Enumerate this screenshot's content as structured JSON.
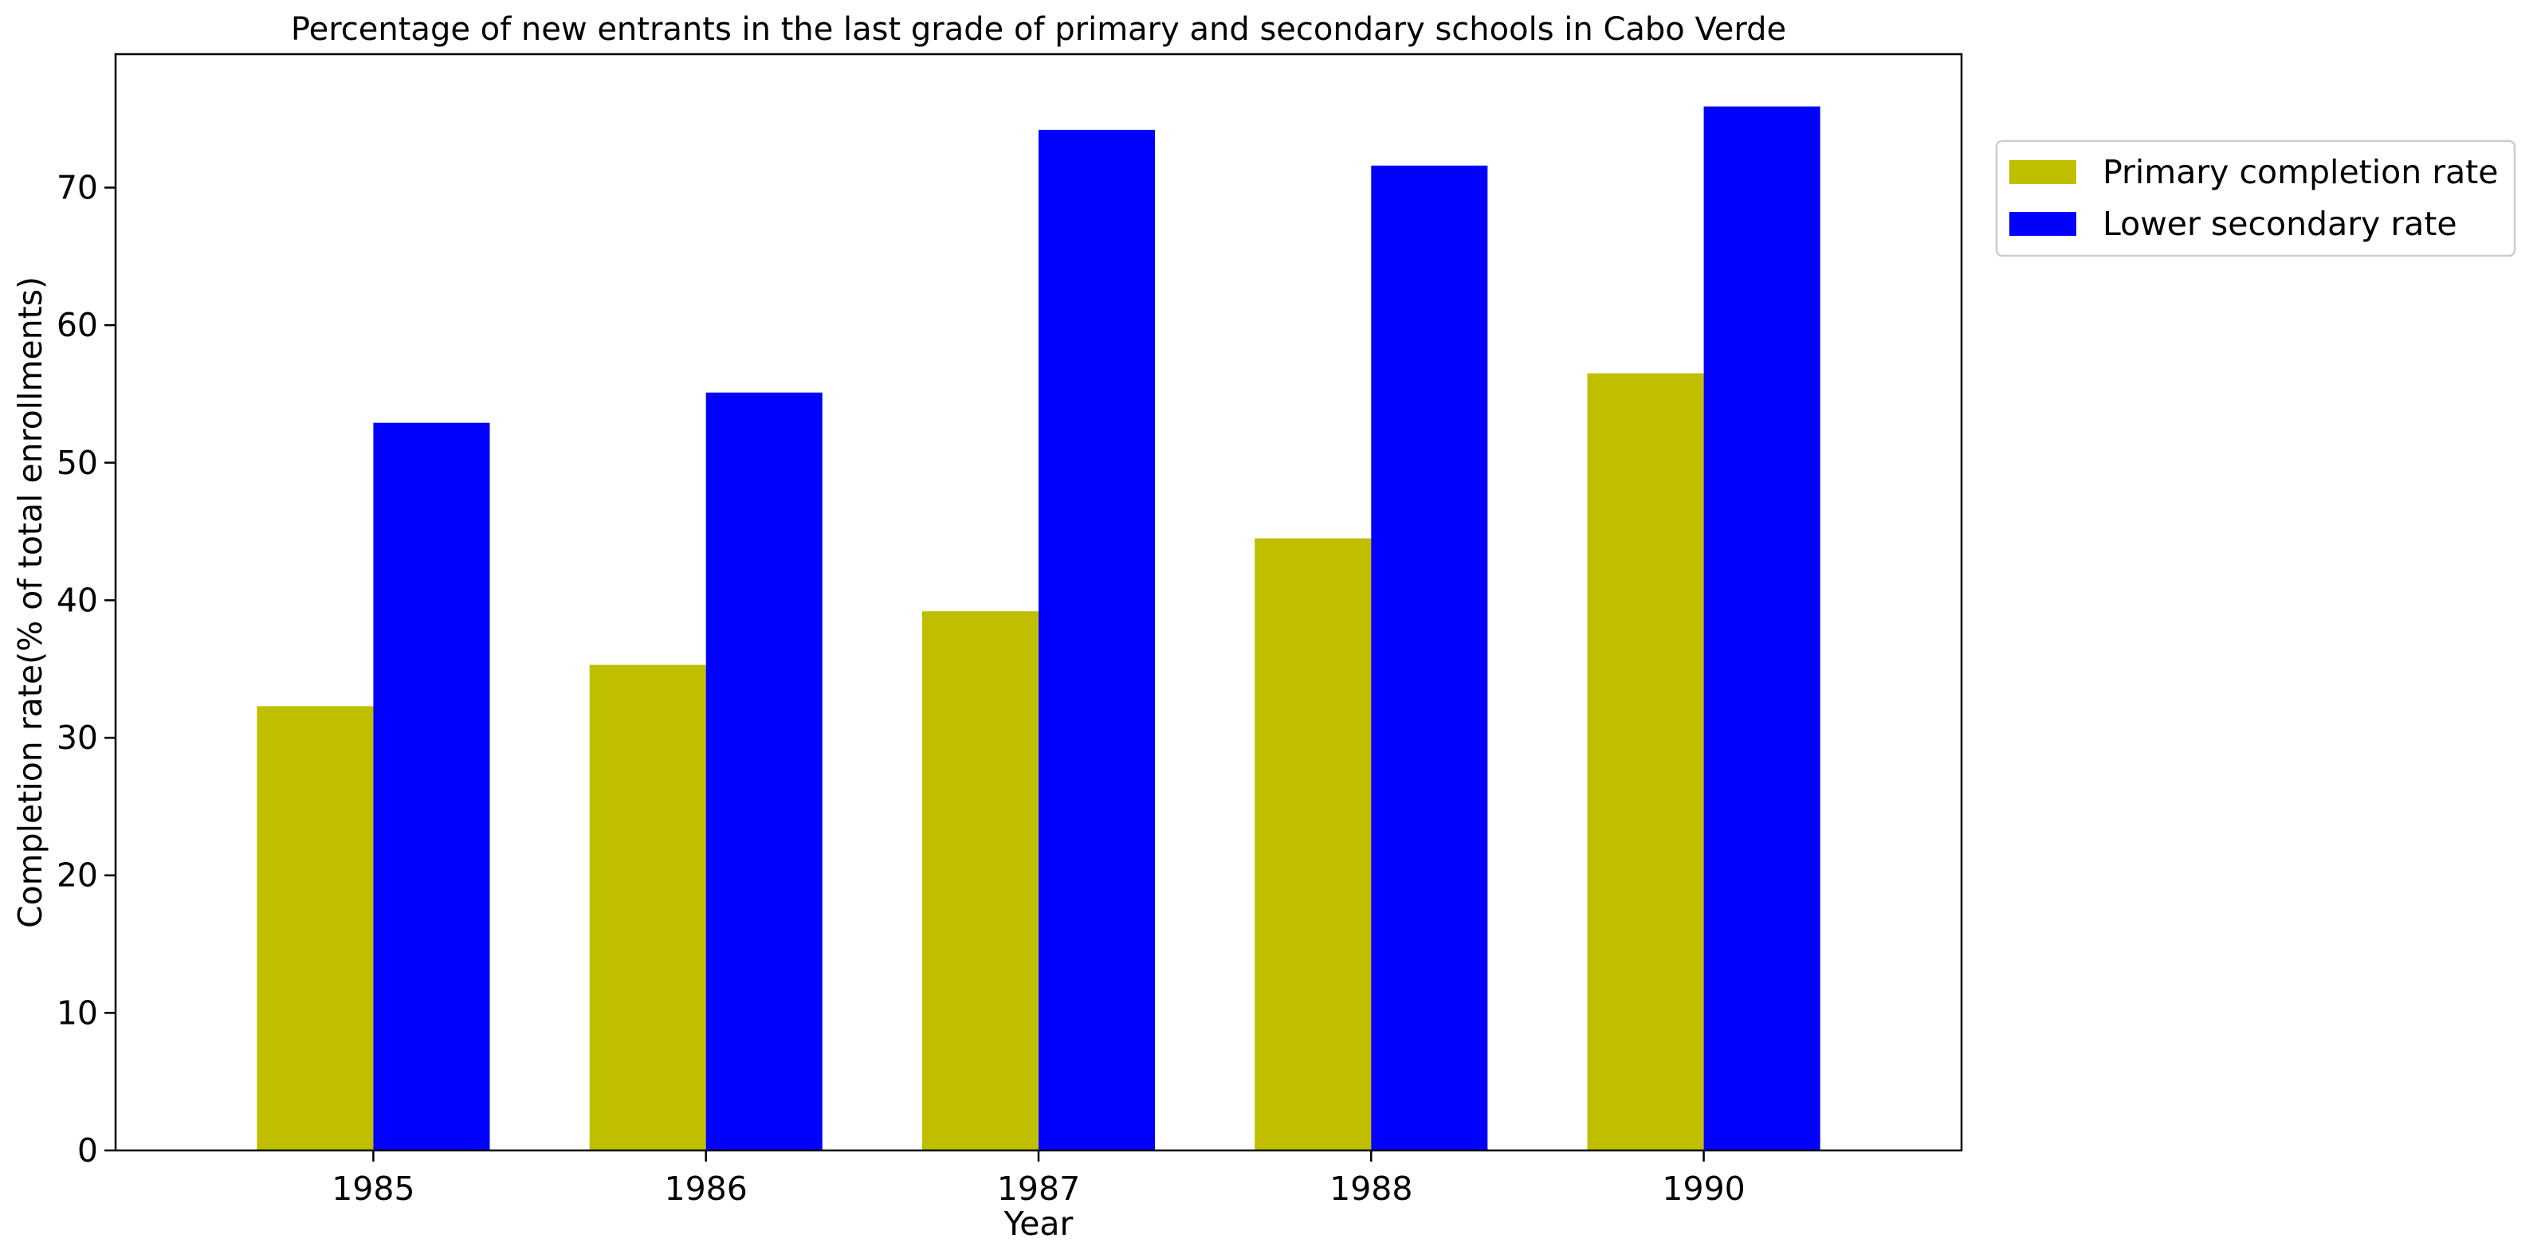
{
  "chart_data": {
    "type": "bar",
    "title": "Percentage of new entrants in the last grade of primary  and secondary schools in Cabo Verde",
    "xlabel": "Year",
    "ylabel": "Completion rate(% of total enrollments)",
    "categories": [
      "1985",
      "1986",
      "1987",
      "1988",
      "1990"
    ],
    "series": [
      {
        "name": "Primary completion rate",
        "values": [
          32.3,
          35.3,
          39.2,
          44.5,
          56.5
        ],
        "color": "#bfbf00"
      },
      {
        "name": "Lower secondary rate",
        "values": [
          52.9,
          55.1,
          74.2,
          71.6,
          75.9
        ],
        "color": "#0000ff"
      }
    ],
    "ylim": [
      0,
      79.7
    ],
    "yticks": [
      0,
      10,
      20,
      30,
      40,
      50,
      60,
      70
    ],
    "grid": false,
    "legend_position": "upper right, outside plot"
  }
}
